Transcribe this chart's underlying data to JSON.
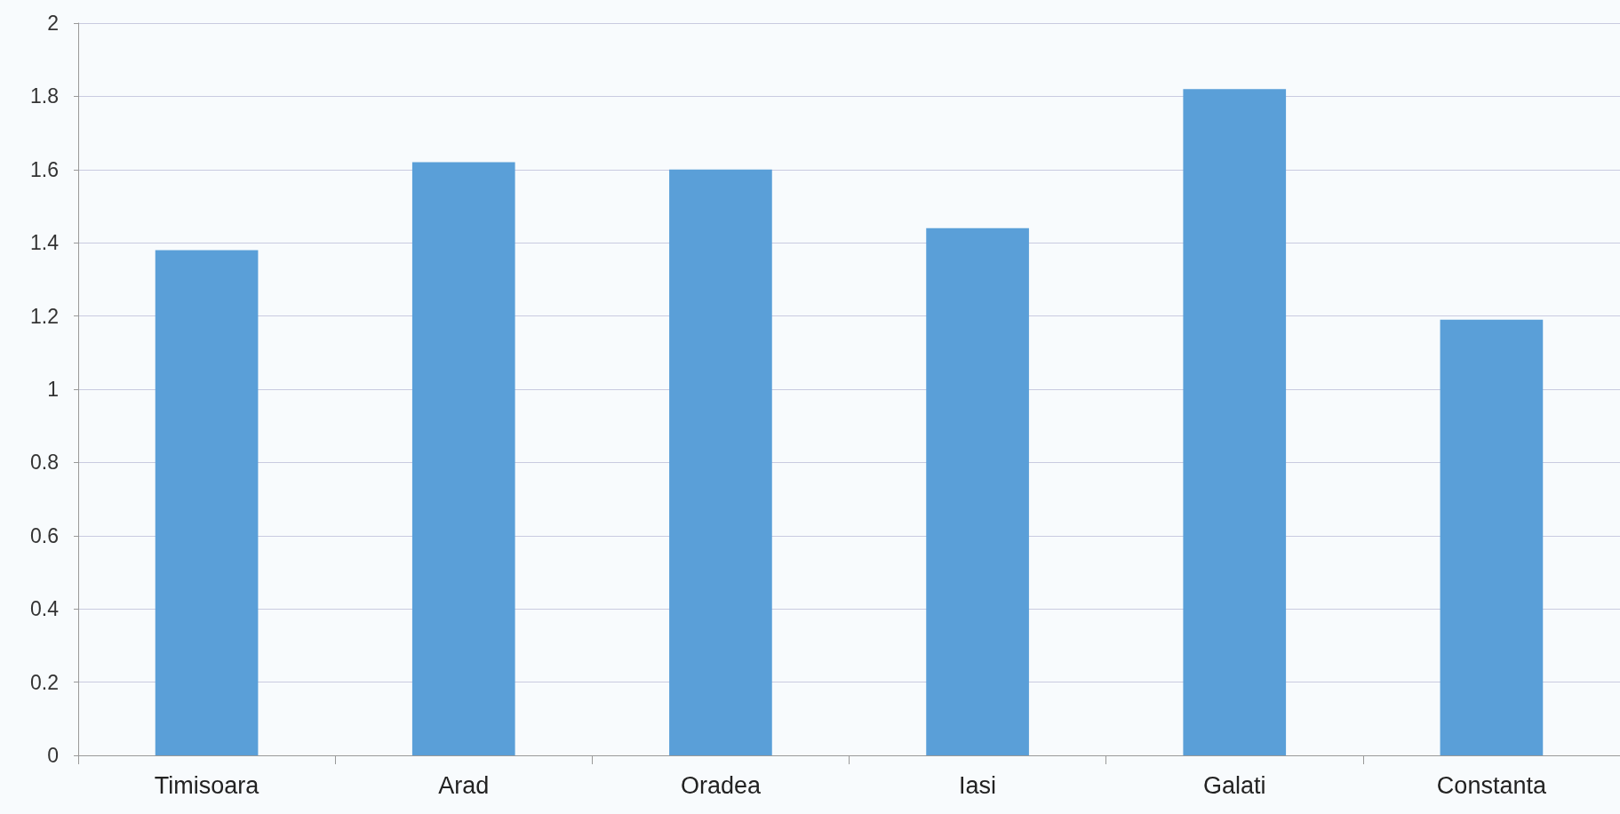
{
  "chart_data": {
    "type": "bar",
    "categories": [
      "Timisoara",
      "Arad",
      "Oradea",
      "Iasi",
      "Galati",
      "Constanta"
    ],
    "values": [
      1.38,
      1.62,
      1.6,
      1.44,
      1.82,
      1.19
    ],
    "color": "#5a9fd8",
    "ylim": [
      0,
      2
    ],
    "yticks": [
      0,
      0.2,
      0.4,
      0.6,
      0.8,
      1,
      1.2,
      1.4,
      1.6,
      1.8,
      2
    ],
    "grid": "y"
  }
}
